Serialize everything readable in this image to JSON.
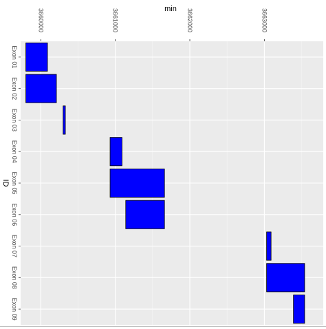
{
  "chart_data": {
    "type": "bar",
    "orientation": "horizontal-range",
    "x_axis_title": "min",
    "y_axis_title": "ID",
    "x_axis_position": "top",
    "x_ticks": [
      3660000,
      3661000,
      3662000,
      3663000
    ],
    "x_tick_labels": [
      "3660000",
      "3661000",
      "3662000",
      "3663000"
    ],
    "xlim": [
      3659730,
      3663790
    ],
    "categories": [
      "Exon 01",
      "Exon 02",
      "Exon 03",
      "Exon 04",
      "Exon 05",
      "Exon 06",
      "Exon 07",
      "Exon 08",
      "Exon 09"
    ],
    "ranges": [
      {
        "id": "Exon 01",
        "start": 3659800,
        "end": 3660090
      },
      {
        "id": "Exon 02",
        "start": 3659800,
        "end": 3660210
      },
      {
        "id": "Exon 03",
        "start": 3660300,
        "end": 3660330
      },
      {
        "id": "Exon 04",
        "start": 3660930,
        "end": 3661090
      },
      {
        "id": "Exon 05",
        "start": 3660930,
        "end": 3661660
      },
      {
        "id": "Exon 06",
        "start": 3661140,
        "end": 3661660
      },
      {
        "id": "Exon 07",
        "start": 3663030,
        "end": 3663090
      },
      {
        "id": "Exon 08",
        "start": 3663030,
        "end": 3663540
      },
      {
        "id": "Exon 09",
        "start": 3663390,
        "end": 3663540
      }
    ],
    "bar_color": "#0000ff",
    "bar_border_color": "#000000",
    "panel_background": "#ebebeb",
    "grid": true,
    "legend": "none"
  }
}
